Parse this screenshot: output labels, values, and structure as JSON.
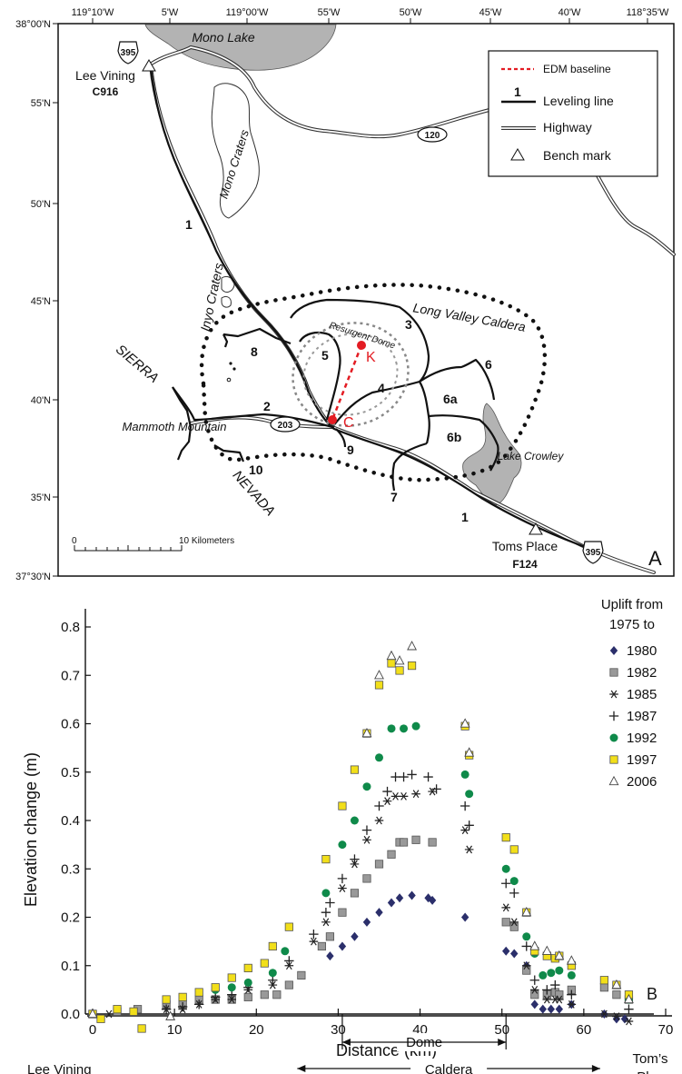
{
  "map": {
    "panel_label": "A",
    "top_ticks": [
      "119°10'W",
      "5'W",
      "119°00'W",
      "55'W",
      "50'W",
      "45'W",
      "40'W",
      "118°35'W"
    ],
    "left_ticks": [
      "38°00'N",
      "55'N",
      "50'N",
      "45'N",
      "40'N",
      "35'N",
      "37°30'N"
    ],
    "places": {
      "mono_lake": "Mono Lake",
      "lee_vining": "Lee Vining",
      "lee_vining_bm": "C916",
      "mono_craters": "Mono Craters",
      "inyo_craters": "Inyo Craters",
      "long_valley_caldera": "Long Valley Caldera",
      "resurgent_dome": "Resurgent Dome",
      "sierra": "SIERRA",
      "nevada": "NEVADA",
      "mammoth_mountain": "Mammoth Mountain",
      "lake_crowley": "Lake Crowley",
      "toms_place": "Toms Place",
      "toms_place_bm": "F124"
    },
    "highway_shields": [
      "395",
      "120",
      "203",
      "395"
    ],
    "leveling_line_numbers": [
      "1",
      "1",
      "2",
      "3",
      "4",
      "5",
      "6",
      "6a",
      "6b",
      "7",
      "8",
      "9",
      "10"
    ],
    "edm_points": [
      "K",
      "C"
    ],
    "scale_bar": {
      "start": "0",
      "end": "10 Kilometers"
    },
    "legend": [
      {
        "label": "EDM baseline",
        "symbol": "edm"
      },
      {
        "label": "Leveling line",
        "symbol": "leveling",
        "marker": "1"
      },
      {
        "label": "Highway",
        "symbol": "highway"
      },
      {
        "label": "Bench mark",
        "symbol": "benchmark"
      }
    ],
    "colors": {
      "water": "#b3b3b3",
      "edm": "#e31c23",
      "caldera": "#111111",
      "dome": "#888888"
    }
  },
  "chart_data": {
    "type": "scatter",
    "panel_label": "B",
    "ylabel": "Elevation change (m)",
    "xlabel": "Distance (km)",
    "xlim": [
      0,
      70
    ],
    "ylim": [
      0,
      0.8
    ],
    "x_ticks": [
      "0",
      "10",
      "20",
      "30",
      "40",
      "50",
      "60",
      "70"
    ],
    "y_ticks": [
      "0.0",
      "0.1",
      "0.2",
      "0.3",
      "0.4",
      "0.5",
      "0.6",
      "0.7",
      "0.8"
    ],
    "legend_title": "Uplift from 1975 to",
    "annotations": {
      "left_end": "Lee Vining",
      "right_end_line1": "Tom’s",
      "right_end_line2": "Place",
      "dome": {
        "label": "Dome",
        "from": 30.5,
        "to": 50.5
      },
      "caldera": {
        "label": "Caldera",
        "from": 25,
        "to": 62
      }
    },
    "series": [
      {
        "name": "1980",
        "marker": "diamond",
        "color": "#2b2f6b",
        "points": [
          [
            29,
            0.12
          ],
          [
            30.5,
            0.14
          ],
          [
            32,
            0.16
          ],
          [
            33.5,
            0.19
          ],
          [
            35,
            0.21
          ],
          [
            36.5,
            0.23
          ],
          [
            37.5,
            0.24
          ],
          [
            39,
            0.245
          ],
          [
            41,
            0.24
          ],
          [
            41.5,
            0.235
          ],
          [
            45.5,
            0.2
          ],
          [
            50.5,
            0.13
          ],
          [
            51.5,
            0.125
          ],
          [
            53,
            0.1
          ],
          [
            54,
            0.02
          ],
          [
            55,
            0.01
          ],
          [
            56,
            0.01
          ],
          [
            57,
            0.01
          ],
          [
            58.5,
            0.02
          ],
          [
            62.5,
            0.0
          ],
          [
            64,
            -0.01
          ],
          [
            65,
            -0.01
          ]
        ]
      },
      {
        "name": "1982",
        "marker": "square",
        "color": "#999999",
        "points": [
          [
            0,
            0.0
          ],
          [
            3,
            0.005
          ],
          [
            5.5,
            0.01
          ],
          [
            9,
            0.02
          ],
          [
            11,
            0.02
          ],
          [
            13,
            0.03
          ],
          [
            15,
            0.03
          ],
          [
            17,
            0.03
          ],
          [
            19,
            0.035
          ],
          [
            21,
            0.04
          ],
          [
            22.5,
            0.04
          ],
          [
            24,
            0.06
          ],
          [
            25.5,
            0.08
          ],
          [
            28,
            0.14
          ],
          [
            29,
            0.16
          ],
          [
            30.5,
            0.21
          ],
          [
            32,
            0.25
          ],
          [
            33.5,
            0.28
          ],
          [
            35,
            0.31
          ],
          [
            36.5,
            0.33
          ],
          [
            37.5,
            0.355
          ],
          [
            38,
            0.355
          ],
          [
            39.5,
            0.36
          ],
          [
            41.5,
            0.355
          ],
          [
            50.5,
            0.19
          ],
          [
            51.5,
            0.18
          ],
          [
            53,
            0.09
          ],
          [
            54,
            0.04
          ],
          [
            55.5,
            0.04
          ],
          [
            56.5,
            0.045
          ],
          [
            57,
            0.04
          ],
          [
            58.5,
            0.05
          ],
          [
            62.5,
            0.055
          ],
          [
            64,
            0.04
          ],
          [
            65.5,
            0.03
          ]
        ]
      },
      {
        "name": "1985",
        "marker": "asterisk",
        "color": "#222222",
        "points": [
          [
            0,
            0.0
          ],
          [
            2,
            0.0
          ],
          [
            9,
            0.01
          ],
          [
            11,
            0.01
          ],
          [
            13,
            0.02
          ],
          [
            15,
            0.03
          ],
          [
            17,
            0.03
          ],
          [
            19,
            0.05
          ],
          [
            22,
            0.06
          ],
          [
            24,
            0.1
          ],
          [
            27,
            0.15
          ],
          [
            28.5,
            0.19
          ],
          [
            30.5,
            0.26
          ],
          [
            32,
            0.31
          ],
          [
            33.5,
            0.36
          ],
          [
            35,
            0.4
          ],
          [
            36,
            0.44
          ],
          [
            37,
            0.45
          ],
          [
            38,
            0.45
          ],
          [
            39.5,
            0.455
          ],
          [
            41.5,
            0.46
          ],
          [
            45.5,
            0.38
          ],
          [
            46,
            0.34
          ],
          [
            50.5,
            0.22
          ],
          [
            51.5,
            0.19
          ],
          [
            53,
            0.1
          ],
          [
            54,
            0.05
          ],
          [
            55.5,
            0.03
          ],
          [
            56.5,
            0.03
          ],
          [
            57,
            0.03
          ],
          [
            58.5,
            0.02
          ],
          [
            62.5,
            0.0
          ],
          [
            64,
            -0.005
          ],
          [
            65.5,
            -0.015
          ]
        ]
      },
      {
        "name": "1987",
        "marker": "plus",
        "color": "#222222",
        "points": [
          [
            9,
            0.01
          ],
          [
            11,
            0.015
          ],
          [
            13,
            0.02
          ],
          [
            15,
            0.035
          ],
          [
            17,
            0.04
          ],
          [
            19,
            0.055
          ],
          [
            22,
            0.07
          ],
          [
            24,
            0.11
          ],
          [
            27,
            0.165
          ],
          [
            28.5,
            0.21
          ],
          [
            29,
            0.23
          ],
          [
            30.5,
            0.28
          ],
          [
            32,
            0.32
          ],
          [
            33.5,
            0.38
          ],
          [
            35,
            0.43
          ],
          [
            36,
            0.46
          ],
          [
            37,
            0.49
          ],
          [
            38,
            0.49
          ],
          [
            39,
            0.495
          ],
          [
            41,
            0.49
          ],
          [
            42,
            0.465
          ],
          [
            45.5,
            0.43
          ],
          [
            46,
            0.39
          ],
          [
            50.5,
            0.27
          ],
          [
            51.5,
            0.25
          ],
          [
            53,
            0.14
          ],
          [
            54,
            0.07
          ],
          [
            55.5,
            0.05
          ],
          [
            56.5,
            0.06
          ],
          [
            58.5,
            0.04
          ],
          [
            65.5,
            0.01
          ]
        ]
      },
      {
        "name": "1992",
        "marker": "circle",
        "color": "#0f8a4a",
        "points": [
          [
            15,
            0.05
          ],
          [
            17,
            0.055
          ],
          [
            19,
            0.065
          ],
          [
            22,
            0.085
          ],
          [
            23.5,
            0.13
          ],
          [
            28.5,
            0.25
          ],
          [
            30.5,
            0.35
          ],
          [
            32,
            0.4
          ],
          [
            33.5,
            0.47
          ],
          [
            35,
            0.53
          ],
          [
            36.5,
            0.59
          ],
          [
            38,
            0.59
          ],
          [
            39.5,
            0.595
          ],
          [
            45.5,
            0.495
          ],
          [
            46,
            0.455
          ],
          [
            50.5,
            0.3
          ],
          [
            51.5,
            0.275
          ],
          [
            53,
            0.16
          ],
          [
            54,
            0.125
          ],
          [
            55,
            0.08
          ],
          [
            56,
            0.085
          ],
          [
            57,
            0.09
          ],
          [
            58.5,
            0.08
          ],
          [
            65.5,
            0.03
          ]
        ]
      },
      {
        "name": "1997",
        "marker": "square",
        "color": "#f2df1a",
        "points": [
          [
            0,
            0.0
          ],
          [
            1,
            -0.01
          ],
          [
            3,
            0.01
          ],
          [
            5,
            0.005
          ],
          [
            6,
            -0.03
          ],
          [
            9,
            0.03
          ],
          [
            11,
            0.035
          ],
          [
            13,
            0.045
          ],
          [
            15,
            0.055
          ],
          [
            17,
            0.075
          ],
          [
            19,
            0.095
          ],
          [
            21,
            0.105
          ],
          [
            22,
            0.14
          ],
          [
            24,
            0.18
          ],
          [
            28.5,
            0.32
          ],
          [
            30.5,
            0.43
          ],
          [
            32,
            0.505
          ],
          [
            33.5,
            0.58
          ],
          [
            35,
            0.68
          ],
          [
            36.5,
            0.725
          ],
          [
            37.5,
            0.71
          ],
          [
            39,
            0.72
          ],
          [
            45.5,
            0.595
          ],
          [
            46,
            0.535
          ],
          [
            50.5,
            0.365
          ],
          [
            51.5,
            0.34
          ],
          [
            53,
            0.21
          ],
          [
            54,
            0.13
          ],
          [
            55.5,
            0.12
          ],
          [
            56.5,
            0.115
          ],
          [
            57,
            0.12
          ],
          [
            58.5,
            0.1
          ],
          [
            62.5,
            0.07
          ],
          [
            64,
            0.06
          ],
          [
            65.5,
            0.04
          ]
        ]
      },
      {
        "name": "2006",
        "marker": "triangle",
        "color": "#ffffff",
        "points": [
          [
            0,
            0.0
          ],
          [
            9.5,
            -0.005
          ],
          [
            33.5,
            0.58
          ],
          [
            35,
            0.7
          ],
          [
            36.5,
            0.74
          ],
          [
            37.5,
            0.73
          ],
          [
            39,
            0.76
          ],
          [
            45.5,
            0.6
          ],
          [
            46,
            0.54
          ],
          [
            53,
            0.21
          ],
          [
            54,
            0.14
          ],
          [
            55.5,
            0.13
          ],
          [
            57,
            0.12
          ],
          [
            58.5,
            0.11
          ],
          [
            64,
            0.06
          ],
          [
            65.5,
            0.03
          ]
        ]
      }
    ]
  }
}
